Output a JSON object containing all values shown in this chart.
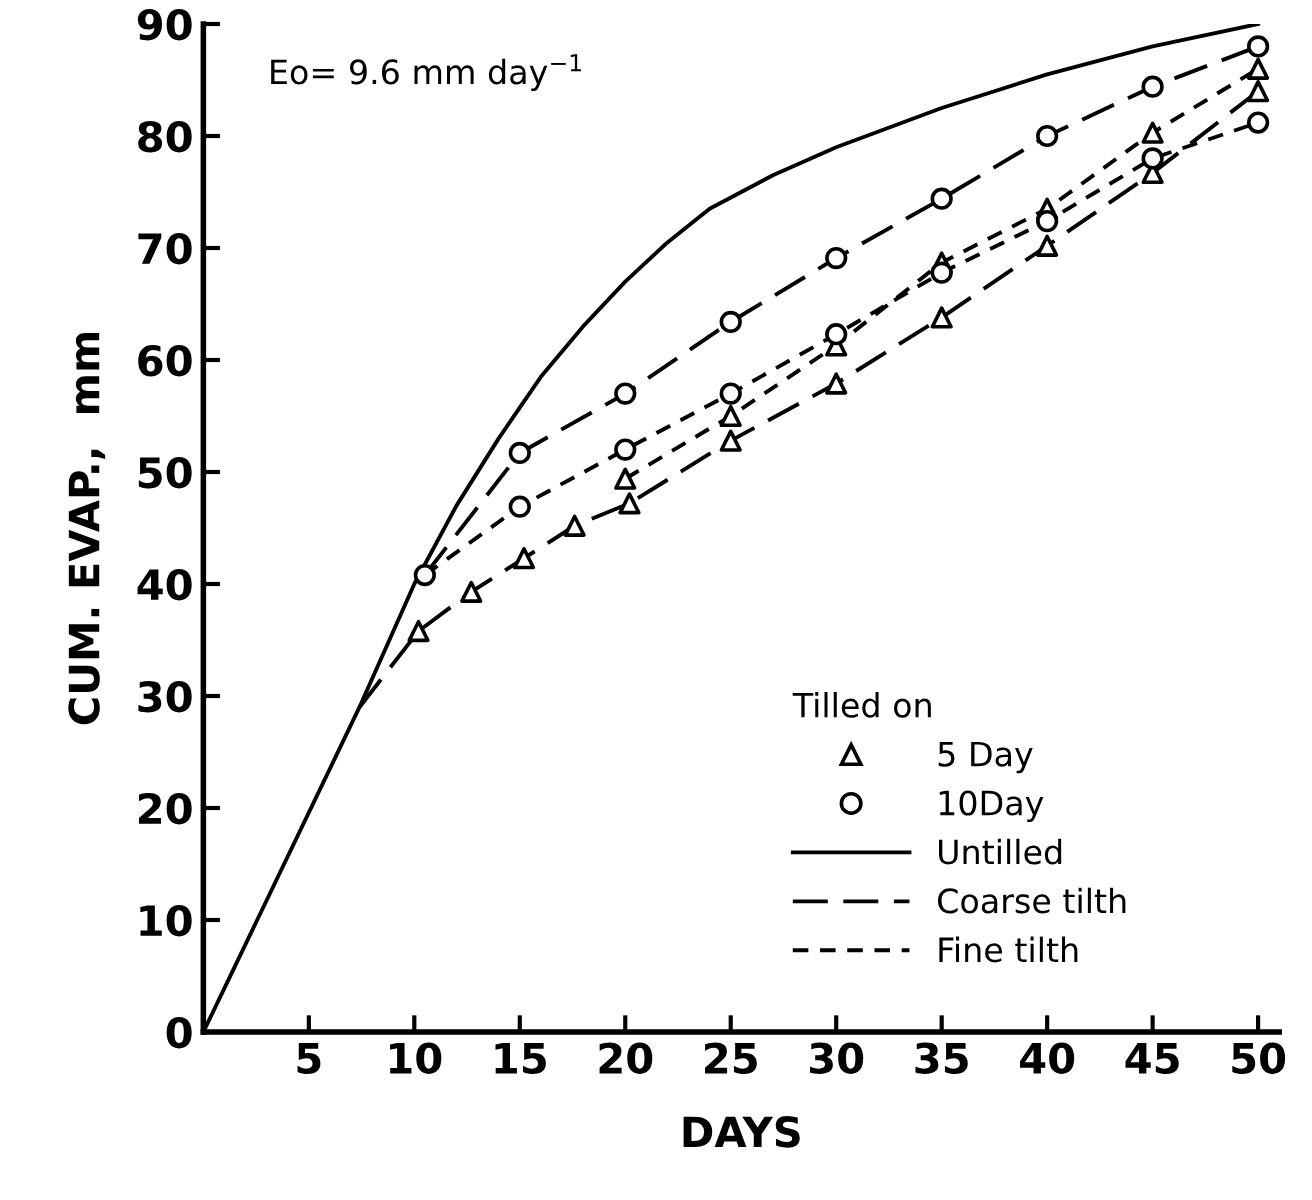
{
  "chart_data": {
    "type": "line",
    "xlabel": "DAYS",
    "ylabel": "CUM. EVAP.,  mm",
    "legend_title": "Tilled on",
    "annotations": [
      "Eo= 9.6 mm day$^{−1}$"
    ],
    "xlim": [
      0,
      51
    ],
    "xticks": [
      5,
      10,
      15,
      20,
      25,
      30,
      35,
      40,
      45,
      50
    ],
    "ylim": [
      0,
      90
    ],
    "yticks": [
      0,
      10,
      20,
      30,
      40,
      50,
      60,
      70,
      80,
      90
    ],
    "grid": false,
    "legend": "bottom right",
    "series": [
      {
        "name": "5 Day",
        "type": "scatter",
        "marker": "triangle",
        "color": "#000000",
        "x": [
          10.2,
          12.7,
          15.2,
          17.6,
          20.2,
          25,
          30,
          35,
          40,
          45,
          50,
          20,
          25,
          30,
          35,
          40,
          45,
          50
        ],
        "values": [
          35.8,
          39.3,
          42.3,
          45.2,
          47.2,
          52.8,
          57.9,
          63.8,
          70.2,
          76.7,
          84,
          49.4,
          55,
          61.3,
          68.7,
          73.5,
          80.3,
          86
        ]
      },
      {
        "name": "10Day",
        "type": "scatter",
        "marker": "circle",
        "color": "#000000",
        "x": [
          10.5,
          15,
          20,
          25,
          30,
          35,
          40,
          45,
          50,
          15,
          20,
          25,
          30,
          35,
          40,
          45,
          50
        ],
        "values": [
          40.8,
          51.7,
          57,
          63.4,
          69.1,
          74.4,
          80,
          84.4,
          88,
          46.9,
          52,
          57,
          62.3,
          67.8,
          72.4,
          78,
          81.2
        ]
      },
      {
        "name": "Untilled",
        "line_style": "solid",
        "color": "#000000",
        "x": [
          0,
          7.4,
          10,
          12,
          14,
          16,
          18,
          20,
          22,
          24,
          27,
          30,
          35,
          40,
          45,
          50
        ],
        "values": [
          0,
          29,
          40,
          47,
          53,
          58.5,
          63,
          67,
          70.5,
          73.5,
          76.5,
          79,
          82.5,
          85.5,
          88,
          90
        ]
      },
      {
        "name": "Coarse tilth",
        "line_style": "dashed",
        "color": "#000000",
        "x": [
          7.4,
          10.2,
          12.7,
          15.2,
          17.6,
          20.2,
          25,
          30,
          35,
          40,
          45,
          50
        ],
        "values": [
          29,
          35.8,
          39.3,
          42.3,
          45.2,
          47.2,
          52.8,
          57.9,
          63.8,
          70.2,
          76.7,
          84
        ]
      },
      {
        "name": "Fine tilth",
        "line_style": "dotted",
        "color": "#000000",
        "x": [
          20,
          25,
          30,
          35,
          40,
          45,
          50
        ],
        "values": [
          49.4,
          55,
          61.3,
          68.7,
          73.5,
          80.3,
          86
        ]
      },
      {
        "line_style": "dashed",
        "color": "#000000",
        "x": [
          10.5,
          15,
          20,
          25,
          30,
          35,
          40,
          45,
          50
        ],
        "values": [
          40.8,
          51.7,
          57,
          63.4,
          69.1,
          74.4,
          80,
          84.4,
          88
        ]
      },
      {
        "line_style": "dotted",
        "color": "#000000",
        "x": [
          10.5,
          15,
          20,
          25,
          30,
          35,
          40,
          45,
          50
        ],
        "values": [
          40.8,
          46.9,
          52,
          57,
          62.3,
          67.8,
          72.4,
          78,
          81.2
        ]
      }
    ]
  }
}
